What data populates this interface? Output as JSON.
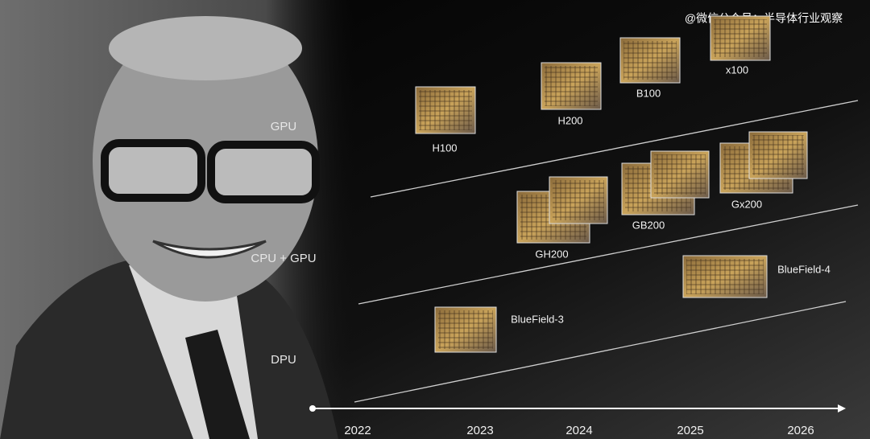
{
  "watermark": "@微信公众号：半导体行业观察",
  "rows": [
    "GPU",
    "CPU + GPU",
    "DPU"
  ],
  "products": [
    {
      "name": "H100"
    },
    {
      "name": "H200"
    },
    {
      "name": "B100"
    },
    {
      "name": "x100"
    },
    {
      "name": "GH200"
    },
    {
      "name": "GB200"
    },
    {
      "name": "Gx200"
    },
    {
      "name": "BlueField-4"
    },
    {
      "name": "BlueField-3"
    }
  ],
  "timeline": {
    "years": [
      "2022",
      "2023",
      "2024",
      "2025",
      "2026"
    ]
  }
}
